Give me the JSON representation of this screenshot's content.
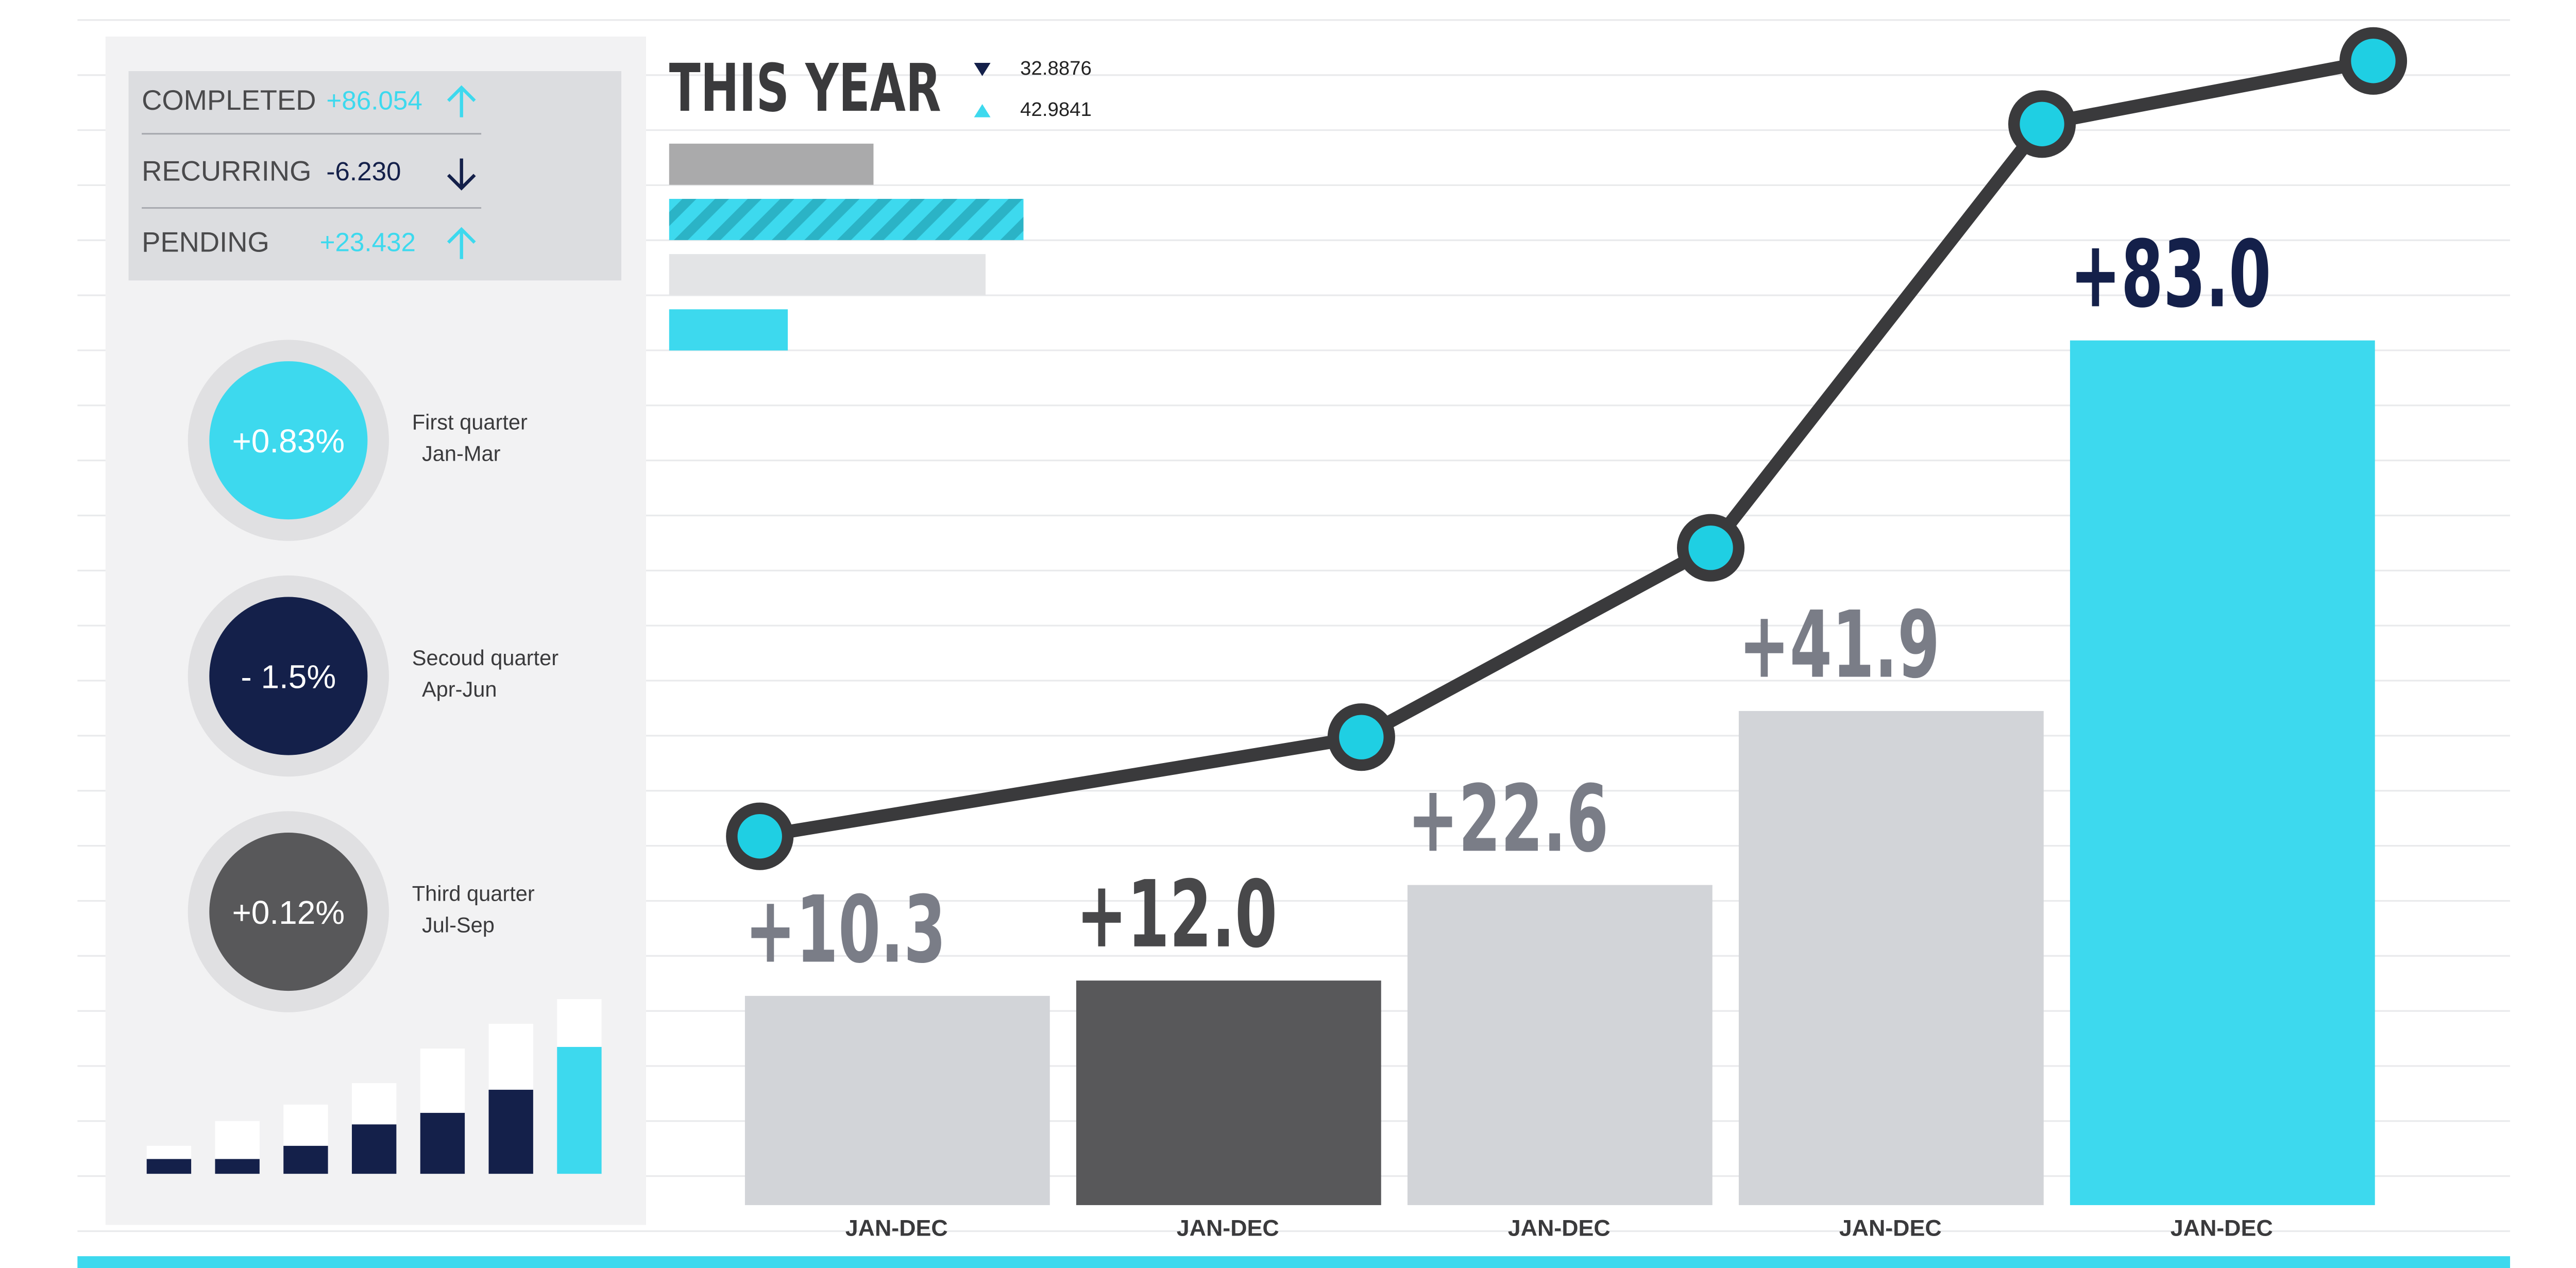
{
  "summary": {
    "rows": [
      {
        "label": "COMPLETED",
        "value": "+86.054",
        "direction": "up"
      },
      {
        "label": "RECURRING",
        "value": "-6.230",
        "direction": "down"
      },
      {
        "label": "PENDING",
        "value": "+23.432",
        "direction": "up"
      }
    ]
  },
  "quarters": [
    {
      "value": "+0.83%",
      "name": "First quarter",
      "range": "Jan-Mar",
      "color": "#3dd9ee"
    },
    {
      "value": "- 1.5%",
      "name": "Secoud quarter",
      "range": "Apr-Jun",
      "color": "#14204a"
    },
    {
      "value": "+0.12%",
      "name": "Third quarter",
      "range": "Jul-Sep",
      "color": "#58585a"
    }
  ],
  "mini_bars": {
    "series": [
      {
        "values": [
          9,
          9,
          17,
          30,
          37,
          51,
          77
        ],
        "colors": [
          "#14204a",
          "#14204a",
          "#14204a",
          "#14204a",
          "#14204a",
          "#14204a",
          "#3dd9ee"
        ]
      },
      {
        "values": [
          8,
          23,
          25,
          25,
          39,
          40,
          29
        ],
        "color": "#ffffff"
      }
    ]
  },
  "this_year": {
    "title": "THIS YEAR",
    "legend": [
      {
        "label": "32.8876",
        "color": "#14204a",
        "marker": "down"
      },
      {
        "label": "42.9841",
        "color": "#3dd9ee",
        "marker": "up"
      }
    ],
    "bars": {
      "values": [
        124,
        215,
        192,
        72
      ],
      "colors": [
        "#aaaaab",
        "stripe",
        "#e3e4e6",
        "#3dd9ee"
      ]
    }
  },
  "chart_data": {
    "type": "bar",
    "categories": [
      "JAN-DEC",
      "JAN-DEC",
      "JAN-DEC",
      "JAN-DEC",
      "JAN-DEC"
    ],
    "values": [
      10.3,
      12.0,
      22.6,
      41.9,
      83.0
    ],
    "value_labels": [
      "+10.3",
      "+12.0",
      "+22.6",
      "+41.9",
      "+83.0"
    ],
    "colors": [
      "#d2d4d8",
      "#58585a",
      "#d2d4d8",
      "#d2d4d8",
      "#3dd9ee"
    ],
    "label_colors": [
      "#7a7d87",
      "#48484a",
      "#7a7d87",
      "#7a7d87",
      "#14204a"
    ],
    "line_values": [
      28,
      39,
      60,
      107,
      114
    ],
    "line_color": "#3a3a3c",
    "marker_color": "#1fcfe3"
  }
}
